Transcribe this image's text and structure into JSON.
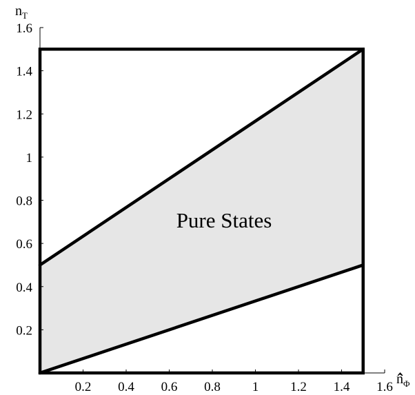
{
  "chart_data": {
    "type": "area",
    "x_axis": {
      "label": "n̂",
      "label_subscript": "Φ",
      "range": [
        0,
        1.6
      ],
      "tick_labels": [
        "0.2",
        "0.4",
        "0.6",
        "0.8",
        "1",
        "1.2",
        "1.4",
        "1.6"
      ],
      "tick_values": [
        0.2,
        0.4,
        0.6,
        0.8,
        1.0,
        1.2,
        1.4,
        1.6
      ]
    },
    "y_axis": {
      "label": "n",
      "label_subscript": "T",
      "range": [
        0,
        1.6
      ],
      "tick_labels": [
        "0.2",
        "0.4",
        "0.6",
        "0.8",
        "1",
        "1.2",
        "1.4",
        "1.6"
      ],
      "tick_values": [
        0.2,
        0.4,
        0.6,
        0.8,
        1.0,
        1.2,
        1.4,
        1.6
      ]
    },
    "boundary_box": {
      "x": [
        0,
        1.5
      ],
      "y": [
        0,
        1.5
      ]
    },
    "region": {
      "label": "Pure States",
      "fill_color": "#e6e6e6",
      "polygon": [
        [
          0,
          0
        ],
        [
          1.5,
          0.5
        ],
        [
          1.5,
          1.5
        ],
        [
          0,
          0.5
        ]
      ]
    },
    "lines": [
      {
        "points": [
          [
            0,
            0
          ],
          [
            1.5,
            0.5
          ]
        ]
      },
      {
        "points": [
          [
            0,
            0.5
          ],
          [
            1.5,
            1.5
          ]
        ]
      }
    ],
    "grid": false,
    "line_color": "#000000"
  }
}
